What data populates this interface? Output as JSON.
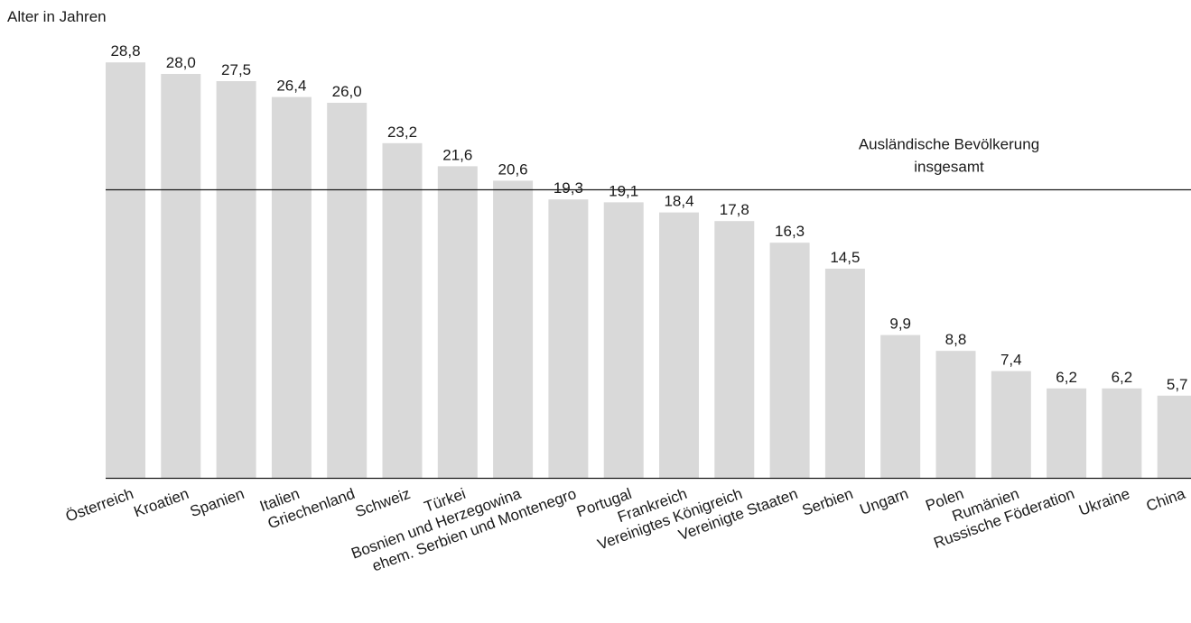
{
  "chart_data": {
    "type": "bar",
    "title": "",
    "ylabel": "Alter in Jahren",
    "xlabel": "",
    "ylim": [
      0,
      30
    ],
    "categories": [
      "Österreich",
      "Kroatien",
      "Spanien",
      "Italien",
      "Griechenland",
      "Schweiz",
      "Türkei",
      "Bosnien und Herzegowina",
      "ehem. Serbien und Montenegro",
      "Portugal",
      "Frankreich",
      "Vereinigtes Königreich",
      "Vereinigte Staaten",
      "Serbien",
      "Ungarn",
      "Polen",
      "Rumänien",
      "Russische Föderation",
      "Ukraine",
      "China"
    ],
    "values": [
      28.8,
      28.0,
      27.5,
      26.4,
      26.0,
      23.2,
      21.6,
      20.6,
      19.3,
      19.1,
      18.4,
      17.8,
      16.3,
      14.5,
      9.9,
      8.8,
      7.4,
      6.2,
      6.2,
      5.7
    ],
    "value_labels": [
      "28,8",
      "28,0",
      "27,5",
      "26,4",
      "26,0",
      "23,2",
      "21,6",
      "20,6",
      "19,3",
      "19,1",
      "18,4",
      "17,8",
      "16,3",
      "14,5",
      "9,9",
      "8,8",
      "7,4",
      "6,2",
      "6,2",
      "5,7"
    ],
    "reference_line": {
      "value": 20,
      "label_line1": "Ausländische Bevölkerung",
      "label_line2": "insgesamt"
    },
    "colors": {
      "bar": "#d9d9d9",
      "axis": "#1a1a1a",
      "text": "#1a1a1a"
    },
    "grid": false,
    "legend": "none"
  }
}
